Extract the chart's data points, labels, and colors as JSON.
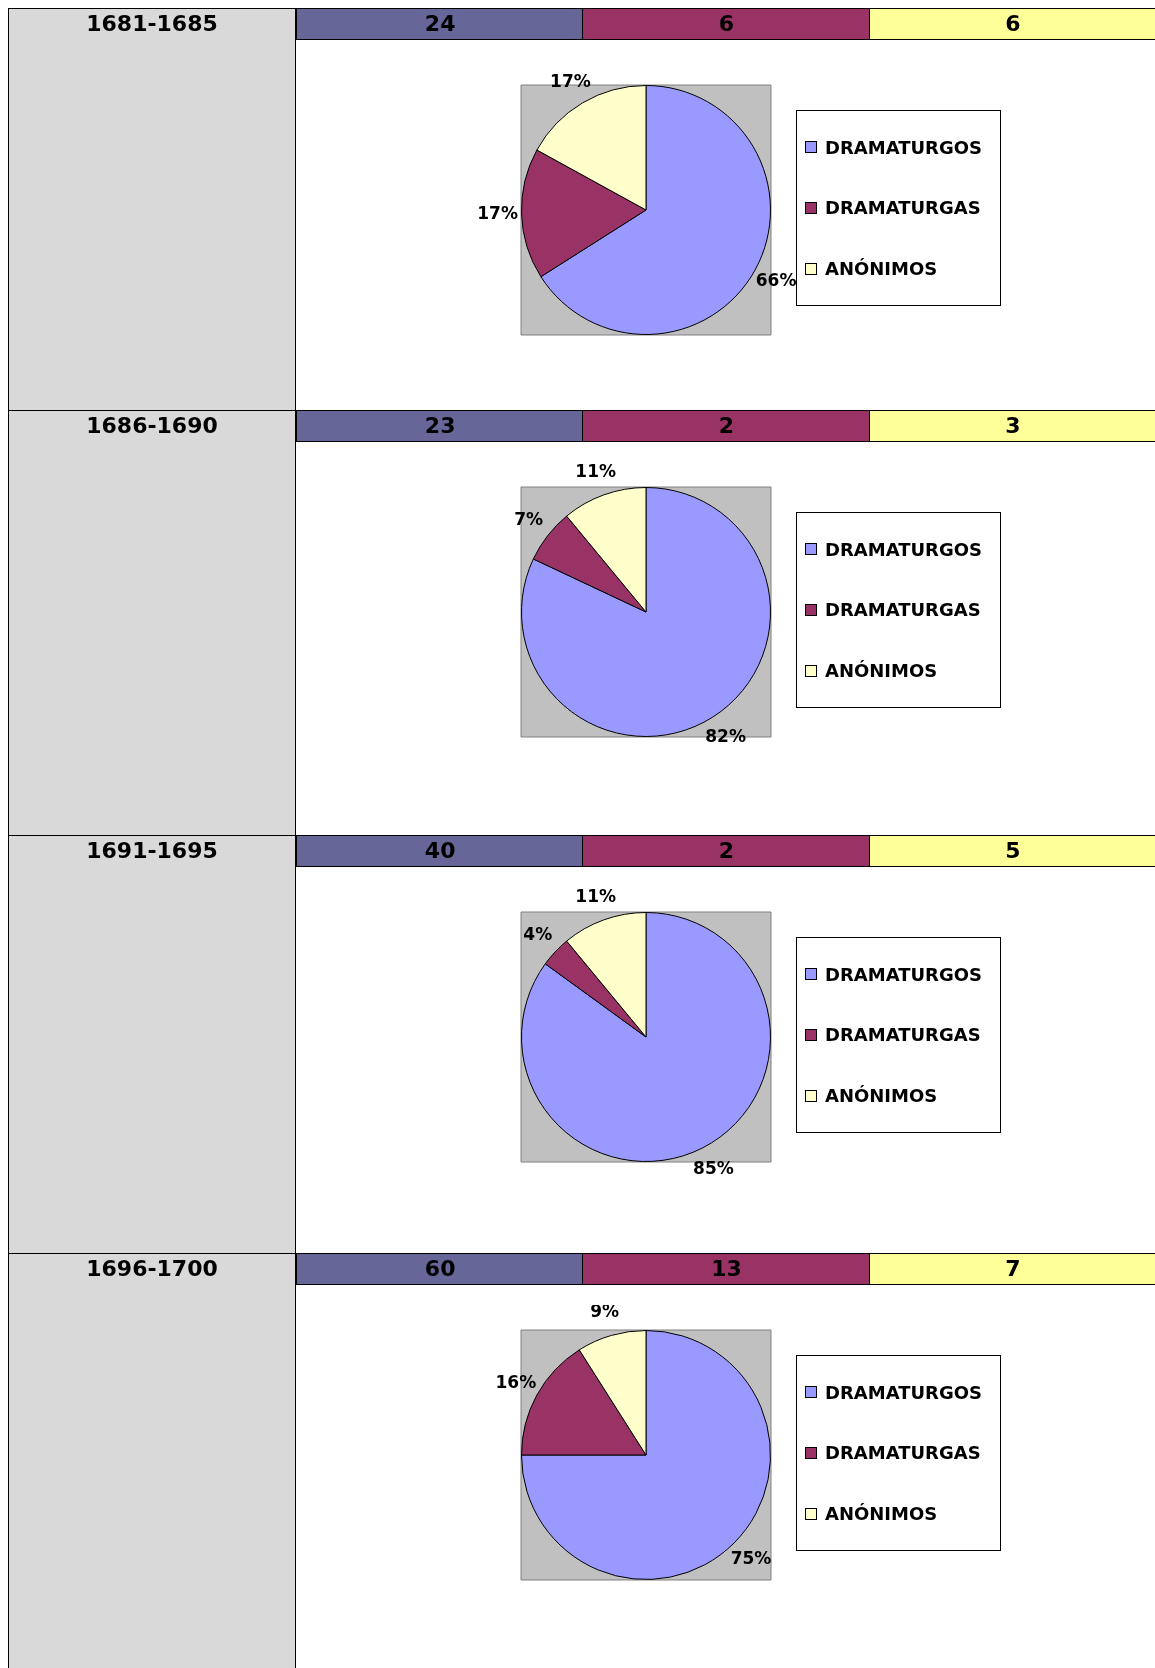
{
  "chart_data": [
    {
      "type": "pie",
      "title": "1681-1685",
      "categories": [
        "DRAMATURGOS",
        "DRAMATURGAS",
        "ANÓNIMOS"
      ],
      "values": [
        66,
        17,
        17
      ],
      "value_labels": [
        "66%",
        "17%",
        "17%"
      ],
      "colors": [
        "#9999ff",
        "#993366",
        "#ffffcc"
      ],
      "legend": "right",
      "annotations": [
        "24",
        "6",
        "6"
      ]
    },
    {
      "type": "pie",
      "title": "1686-1690",
      "categories": [
        "DRAMATURGOS",
        "DRAMATURGAS",
        "ANÓNIMOS"
      ],
      "values": [
        82,
        7,
        11
      ],
      "value_labels": [
        "82%",
        "7%",
        "11%"
      ],
      "colors": [
        "#9999ff",
        "#993366",
        "#ffffcc"
      ],
      "legend": "right",
      "annotations": [
        "23",
        "2",
        "3"
      ]
    },
    {
      "type": "pie",
      "title": "1691-1695",
      "categories": [
        "DRAMATURGOS",
        "DRAMATURGAS",
        "ANÓNIMOS"
      ],
      "values": [
        85,
        4,
        11
      ],
      "value_labels": [
        "85%",
        "4%",
        "11%"
      ],
      "colors": [
        "#9999ff",
        "#993366",
        "#ffffcc"
      ],
      "legend": "right",
      "annotations": [
        "40",
        "2",
        "5"
      ]
    },
    {
      "type": "pie",
      "title": "1696-1700",
      "categories": [
        "DRAMATURGOS",
        "DRAMATURGAS",
        "ANÓNIMOS"
      ],
      "values": [
        75,
        16,
        9
      ],
      "value_labels": [
        "75%",
        "16%",
        "9%"
      ],
      "colors": [
        "#9999ff",
        "#993366",
        "#ffffcc"
      ],
      "legend": "right",
      "annotations": [
        "60",
        "13",
        "7"
      ]
    }
  ]
}
